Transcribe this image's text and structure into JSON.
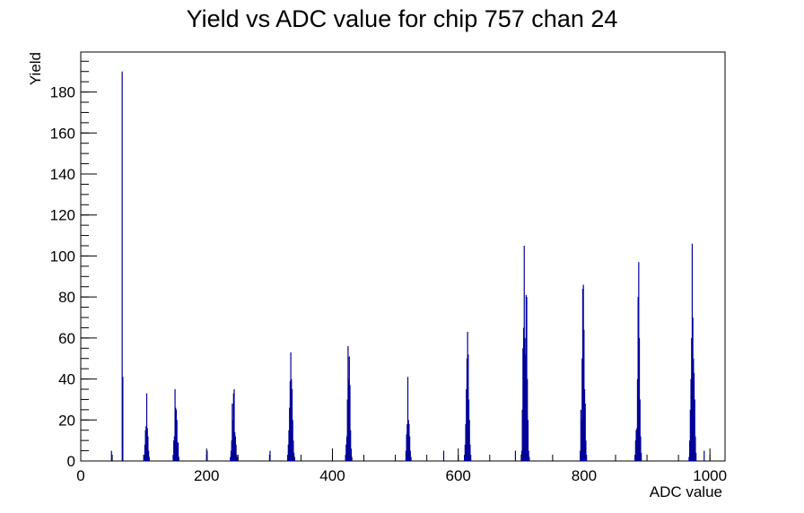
{
  "chart_data": {
    "type": "histogram",
    "title": "Yield vs ADC value for chip 757 chan 24",
    "x_label": "ADC value",
    "y_label": "Yield",
    "color": "#000099",
    "x": [
      48,
      65,
      66,
      100,
      101,
      102,
      103,
      104,
      105,
      106,
      107,
      108,
      146,
      147,
      148,
      149,
      150,
      151,
      152,
      153,
      154,
      155,
      200,
      237,
      238,
      239,
      240,
      241,
      242,
      243,
      244,
      245,
      246,
      247,
      248,
      300,
      328,
      329,
      330,
      331,
      332,
      333,
      334,
      335,
      336,
      337,
      338,
      339,
      420,
      421,
      422,
      423,
      424,
      425,
      426,
      427,
      428,
      429,
      430,
      516,
      517,
      518,
      519,
      520,
      521,
      522,
      523,
      524,
      576,
      609,
      610,
      611,
      612,
      613,
      614,
      615,
      616,
      617,
      618,
      619,
      690,
      700,
      701,
      702,
      703,
      704,
      705,
      706,
      707,
      708,
      709,
      710,
      711,
      712,
      793,
      794,
      795,
      796,
      797,
      798,
      799,
      800,
      801,
      802,
      803,
      880,
      881,
      882,
      883,
      884,
      885,
      886,
      887,
      888,
      889,
      890,
      966,
      967,
      968,
      969,
      970,
      971,
      972,
      973,
      974,
      975,
      976,
      977,
      990
    ],
    "values": [
      5,
      190,
      41,
      3,
      8,
      15,
      17,
      33,
      16,
      12,
      5,
      2,
      3,
      10,
      12,
      35,
      26,
      25,
      20,
      9,
      9,
      2,
      5,
      2,
      5,
      10,
      28,
      20,
      33,
      35,
      14,
      12,
      8,
      3,
      2,
      5,
      3,
      8,
      15,
      26,
      39,
      53,
      40,
      35,
      20,
      10,
      4,
      2,
      3,
      8,
      12,
      30,
      56,
      40,
      51,
      37,
      15,
      6,
      2,
      5,
      13,
      18,
      41,
      20,
      18,
      12,
      5,
      2,
      5,
      3,
      8,
      18,
      35,
      50,
      63,
      52,
      30,
      20,
      8,
      3,
      5,
      5,
      25,
      55,
      65,
      105,
      60,
      52,
      81,
      80,
      40,
      20,
      5,
      2,
      5,
      25,
      20,
      50,
      84,
      86,
      64,
      35,
      28,
      10,
      3,
      3,
      10,
      15,
      16,
      40,
      80,
      97,
      60,
      30,
      12,
      4,
      2,
      10,
      25,
      40,
      60,
      106,
      70,
      50,
      43,
      30,
      12,
      4,
      5
    ],
    "xlim": [
      0,
      1024
    ],
    "ylim": [
      0,
      199.5
    ],
    "xticks": [
      0,
      200,
      400,
      600,
      800,
      1000
    ],
    "yticks": [
      0,
      20,
      40,
      60,
      80,
      100,
      120,
      140,
      160,
      180
    ]
  }
}
